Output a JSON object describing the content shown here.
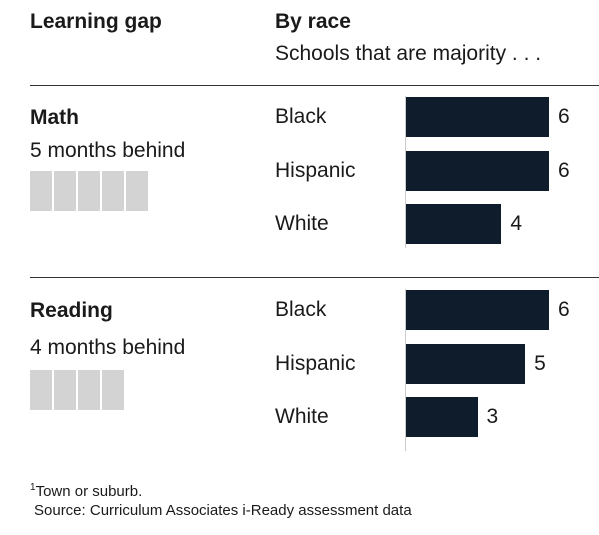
{
  "header": {
    "left_title": "Learning gap",
    "right_title": "By race",
    "right_subtitle": "Schools that are majority . . ."
  },
  "sections": [
    {
      "title": "Math",
      "subtitle": "5 months behind",
      "blocks_count": 5
    },
    {
      "title": "Reading",
      "subtitle": "4 months behind",
      "blocks_count": 4
    }
  ],
  "chart_data": {
    "type": "bar",
    "orientation": "horizontal",
    "bar_color": "#0f1c2b",
    "groups": [
      {
        "name": "Math",
        "categories": [
          "Black",
          "Hispanic",
          "White"
        ],
        "values": [
          6,
          6,
          4
        ]
      },
      {
        "name": "Reading",
        "categories": [
          "Black",
          "Hispanic",
          "White"
        ],
        "values": [
          6,
          5,
          3
        ]
      }
    ],
    "xlim": [
      0,
      6
    ],
    "grid": false
  },
  "footnote": {
    "marker": "1",
    "text": "Town or suburb."
  },
  "source": "Source: Curriculum Associates i-Ready assessment data"
}
